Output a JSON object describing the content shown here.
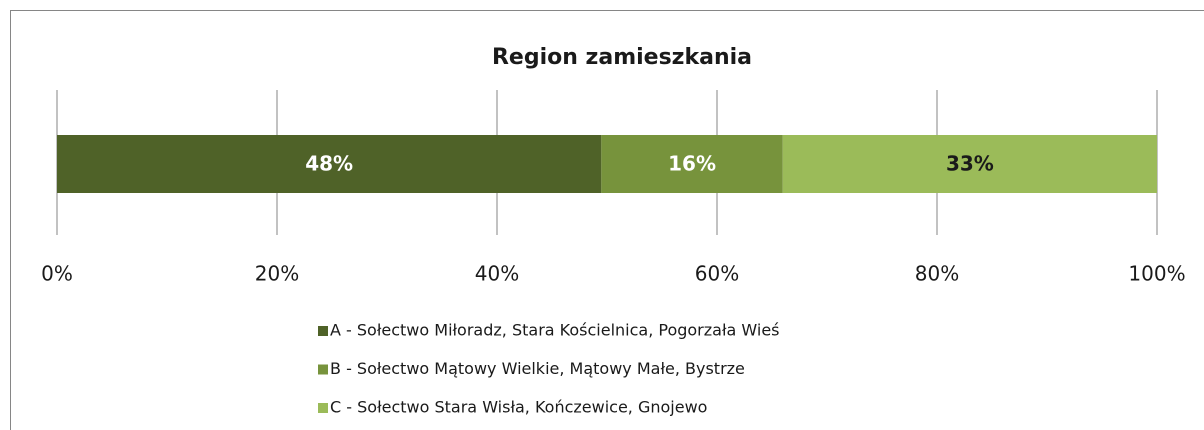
{
  "chart_data": {
    "type": "bar",
    "orientation": "horizontal",
    "stacking": "percent",
    "title": "Region  zamieszkania",
    "categories": [
      null
    ],
    "series": [
      {
        "name": "A - Sołectwo Miłoradz, Stara Kościelnica, Pogorzała Wieś",
        "color": "#4f6228",
        "label_color": "#ffffff",
        "values": [
          48
        ],
        "value_labels": [
          "48%"
        ]
      },
      {
        "name": "B - Sołectwo Mątowy Wielkie, Mątowy Małe, Bystrze",
        "color": "#77933c",
        "label_color": "#ffffff",
        "values": [
          16
        ],
        "value_labels": [
          "16%"
        ]
      },
      {
        "name": "C - Sołectwo Stara Wisła, Kończewice, Gnojewo",
        "color": "#9bbb59",
        "label_color": "#1a1a1a",
        "values": [
          33
        ],
        "value_labels": [
          "33%"
        ]
      }
    ],
    "xlim": [
      0,
      100
    ],
    "xticks": [
      {
        "value": 0,
        "label": "0%"
      },
      {
        "value": 20,
        "label": "20%"
      },
      {
        "value": 40,
        "label": "40%"
      },
      {
        "value": 60,
        "label": "60%"
      },
      {
        "value": 80,
        "label": "80%"
      },
      {
        "value": 100,
        "label": "100%"
      }
    ],
    "grid": true,
    "legend": "bottom"
  }
}
